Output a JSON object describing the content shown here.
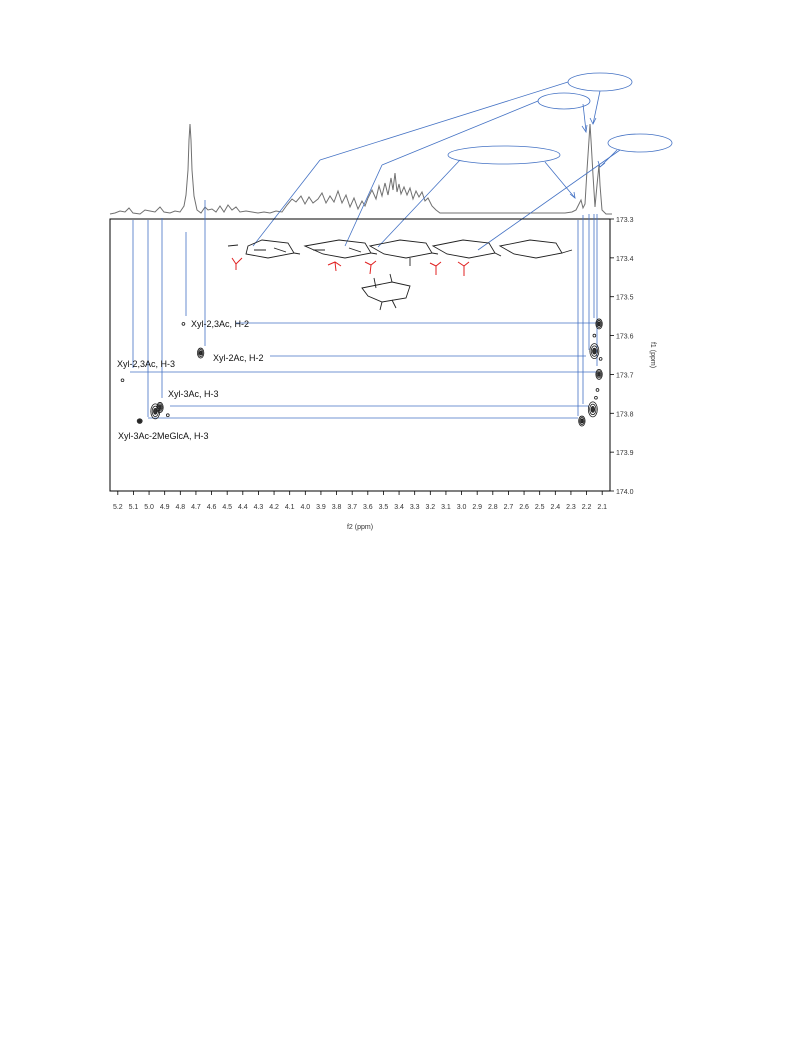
{
  "chart_data": {
    "type": "scatter",
    "subtype": "2D NMR HMBC contour plot with 1D 1H projection",
    "xlabel": "f2 (ppm)",
    "ylabel": "f1 (ppm)",
    "xlim": [
      5.25,
      2.05
    ],
    "ylim": [
      173.3,
      174.0
    ],
    "x_reversed": true,
    "y_reversed": true,
    "x_ticks": [
      5.2,
      5.1,
      5.0,
      4.9,
      4.8,
      4.7,
      4.6,
      4.5,
      4.4,
      4.3,
      4.2,
      4.1,
      4.0,
      3.9,
      3.8,
      3.7,
      3.6,
      3.5,
      3.4,
      3.3,
      3.2,
      3.1,
      3.0,
      2.9,
      2.8,
      2.7,
      2.6,
      2.5,
      2.4,
      2.3,
      2.2,
      2.1
    ],
    "y_ticks": [
      173.3,
      173.4,
      173.5,
      173.6,
      173.7,
      173.8,
      173.9,
      174.0
    ],
    "grid": false,
    "peaks": [
      {
        "x": 4.78,
        "y": 173.57,
        "size": "tiny"
      },
      {
        "x": 4.67,
        "y": 173.645,
        "size": "medium"
      },
      {
        "x": 5.17,
        "y": 173.715,
        "size": "tiny"
      },
      {
        "x": 4.96,
        "y": 173.795,
        "size": "large"
      },
      {
        "x": 4.93,
        "y": 173.785,
        "size": "medium"
      },
      {
        "x": 4.88,
        "y": 173.805,
        "size": "tiny"
      },
      {
        "x": 5.06,
        "y": 173.82,
        "size": "small"
      },
      {
        "x": 2.23,
        "y": 173.82,
        "size": "medium"
      },
      {
        "x": 2.12,
        "y": 173.57,
        "size": "medium"
      },
      {
        "x": 2.15,
        "y": 173.64,
        "size": "large"
      },
      {
        "x": 2.12,
        "y": 173.7,
        "size": "medium"
      },
      {
        "x": 2.16,
        "y": 173.79,
        "size": "large"
      },
      {
        "x": 2.15,
        "y": 173.6,
        "size": "tiny"
      },
      {
        "x": 2.11,
        "y": 173.66,
        "size": "tiny"
      },
      {
        "x": 2.13,
        "y": 173.74,
        "size": "tiny"
      },
      {
        "x": 2.14,
        "y": 173.76,
        "size": "tiny"
      }
    ],
    "annotations": [
      {
        "id": "xyl23ac-h2",
        "text": "Xyl-2,3Ac, H-2"
      },
      {
        "id": "xyl2ac-h2",
        "text": "Xyl-2Ac, H-2"
      },
      {
        "id": "xyl23ac-h3",
        "text": "Xyl-2,3Ac, H-3"
      },
      {
        "id": "xyl3ac-h3",
        "text": "Xyl-3Ac, H-3"
      },
      {
        "id": "xyl3ac2meglca-h3",
        "text": "Xyl-3Ac-2MeGlcA, H-3"
      }
    ],
    "colors": {
      "connector": "#4472c4",
      "contour": "#1a1a1a",
      "acetyl": "#e02020",
      "spectrum": "#707070"
    }
  }
}
